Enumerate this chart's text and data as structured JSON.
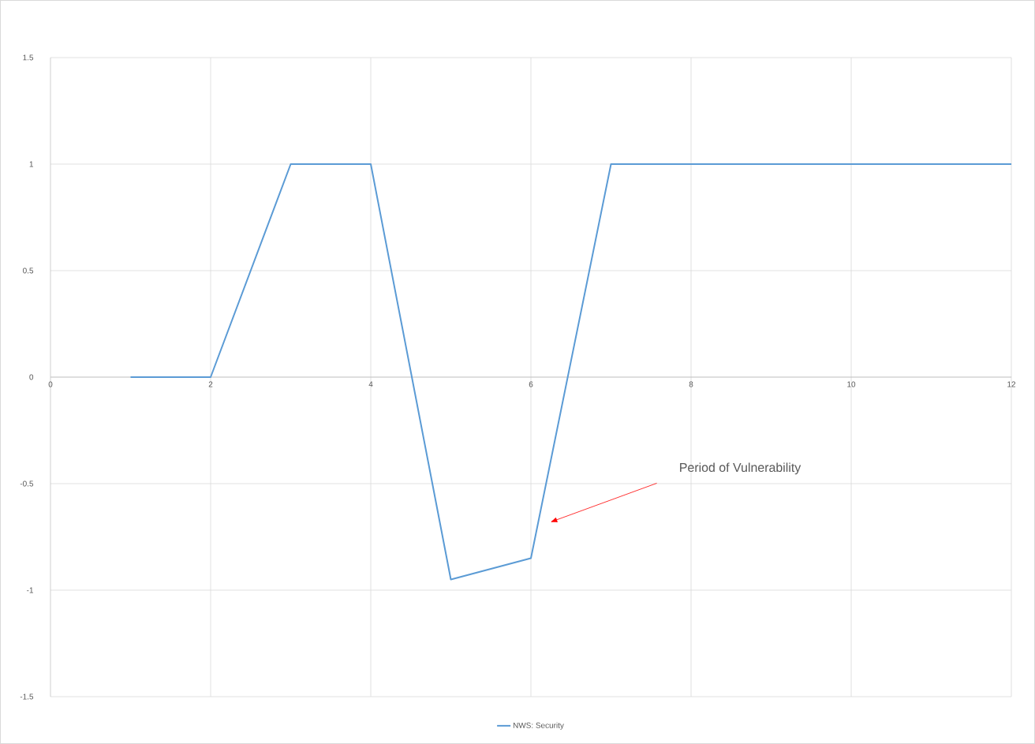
{
  "chart_data": {
    "type": "line",
    "x": [
      1,
      2,
      3,
      4,
      5,
      6,
      7,
      8,
      9,
      10,
      11,
      12
    ],
    "series": [
      {
        "name": "NWS: Security",
        "color": "#5b9bd5",
        "values": [
          0,
          0,
          1,
          1,
          -0.95,
          -0.85,
          1,
          1,
          1,
          1,
          1,
          1
        ]
      }
    ],
    "xlim": [
      0,
      12
    ],
    "xticks": [
      0,
      2,
      4,
      6,
      8,
      10,
      12
    ],
    "ylim": [
      -1.5,
      1.5
    ],
    "yticks": [
      -1.5,
      -1,
      -0.5,
      0,
      0.5,
      1,
      1.5
    ],
    "grid": true,
    "legend": "bottom",
    "marker": "none",
    "line_style": "solid",
    "annotations": [
      "Period of Vulnerability"
    ]
  }
}
